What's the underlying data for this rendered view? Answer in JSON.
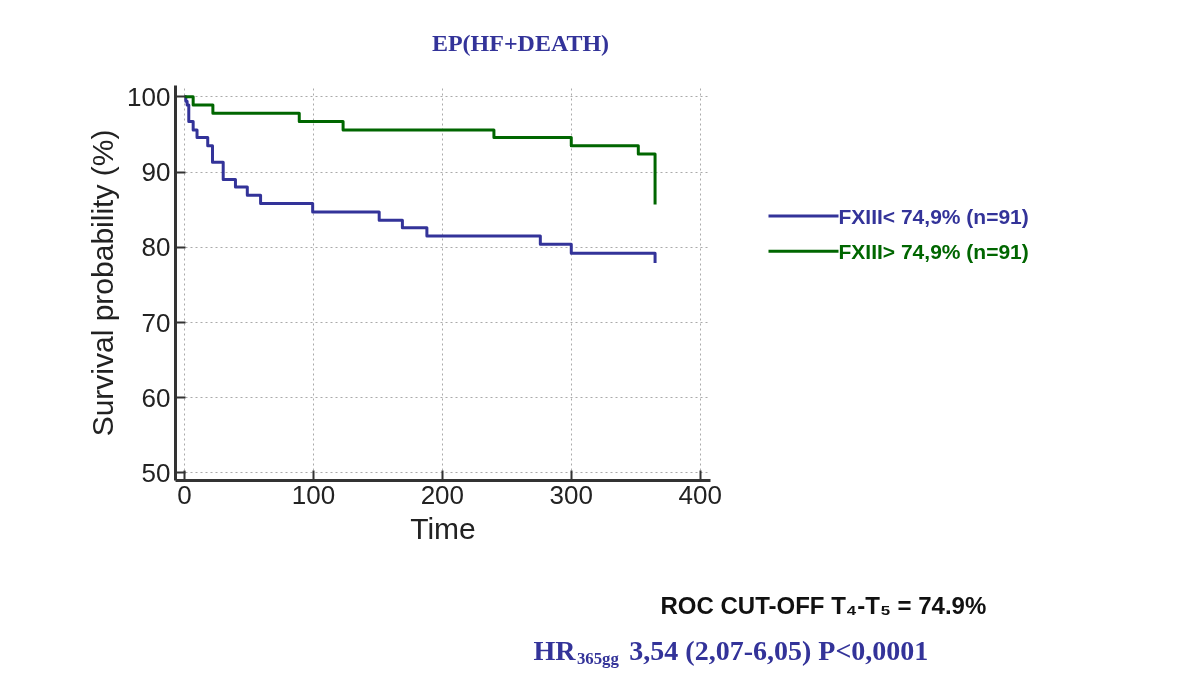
{
  "chart_data": {
    "type": "step",
    "title": "EP(HF+DEATH)",
    "xlabel": "Time",
    "ylabel": "Survival probability (%)",
    "xlim": [
      -7,
      408
    ],
    "ylim": [
      49,
      101.5
    ],
    "xticks": [
      0,
      100,
      200,
      300,
      400
    ],
    "yticks": [
      50,
      60,
      70,
      80,
      90,
      100
    ],
    "grid": true,
    "legend": "right",
    "line_style": "solid",
    "series": [
      {
        "name": "FXIII< 74,9% (n=91)",
        "color": "#333399",
        "x": [
          0,
          1,
          2,
          3.3,
          6.7,
          9.7,
          18,
          21.7,
          30,
          39.5,
          48.7,
          59,
          99.4,
          151,
          169,
          188,
          276,
          300,
          365
        ],
        "values": [
          100,
          99.4,
          98.9,
          96.7,
          95.6,
          94.6,
          93.5,
          91.3,
          89.0,
          88.0,
          86.9,
          85.8,
          84.7,
          83.6,
          82.6,
          81.5,
          80.4,
          79.2,
          77.9
        ]
      },
      {
        "name": "FXIII> 74,9% (n=91)",
        "color": "#006600",
        "x": [
          0,
          6.7,
          22,
          89,
          123,
          240,
          300,
          352,
          365
        ],
        "values": [
          100,
          98.9,
          97.8,
          96.7,
          95.6,
          94.6,
          93.5,
          92.4,
          85.7
        ]
      }
    ],
    "annotations": [
      "ROC CUT-OFF T₄-T₅ = 74.9%",
      "HR$_{365gg}$ 3,54 (2,07-6,05) P<0,0001"
    ]
  }
}
